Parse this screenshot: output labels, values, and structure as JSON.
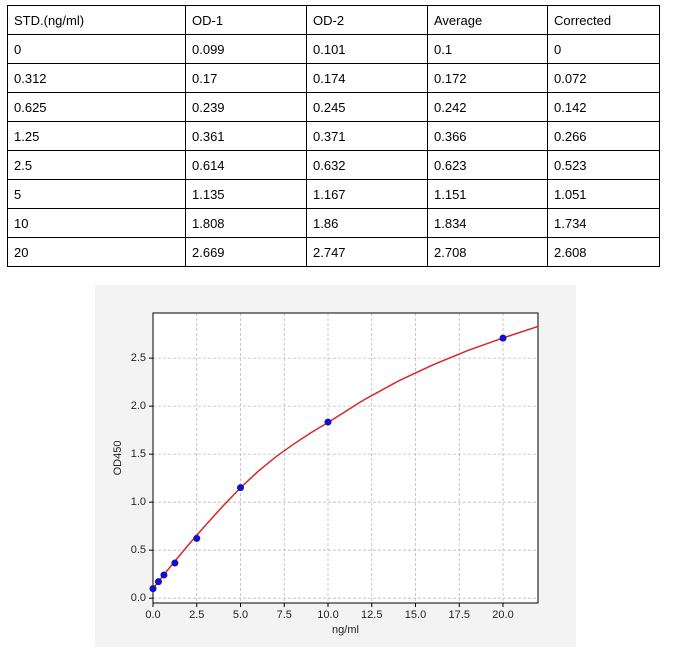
{
  "table": {
    "header": [
      "STD.(ng/ml)",
      "OD-1",
      "OD-2",
      "Average",
      "Corrected"
    ],
    "rows": [
      [
        "0",
        "0.099",
        "0.101",
        "0.1",
        "0"
      ],
      [
        "0.312",
        "0.17",
        "0.174",
        "0.172",
        "0.072"
      ],
      [
        "0.625",
        "0.239",
        "0.245",
        "0.242",
        "0.142"
      ],
      [
        "1.25",
        "0.361",
        "0.371",
        "0.366",
        "0.266"
      ],
      [
        "2.5",
        "0.614",
        "0.632",
        "0.623",
        "0.523"
      ],
      [
        "5",
        "1.135",
        "1.167",
        "1.151",
        "1.051"
      ],
      [
        "10",
        "1.808",
        "1.86",
        "1.834",
        "1.734"
      ],
      [
        "20",
        "2.669",
        "2.747",
        "2.708",
        "2.608"
      ]
    ]
  },
  "chart_data": {
    "type": "scatter",
    "x_label": "ng/ml",
    "y_label": "OD450",
    "points": {
      "color": "#1010c8",
      "x": [
        0,
        0.312,
        0.625,
        1.25,
        2.5,
        5,
        10,
        20
      ],
      "values": [
        0.1,
        0.172,
        0.242,
        0.366,
        0.623,
        1.151,
        1.834,
        2.708
      ]
    },
    "curve": {
      "color": "#d62728",
      "x": [
        0,
        1,
        2,
        3,
        4,
        5,
        6,
        7,
        8,
        9,
        10,
        12,
        14,
        16,
        18,
        20,
        22
      ],
      "values": [
        0.1,
        0.33,
        0.55,
        0.76,
        0.96,
        1.15,
        1.32,
        1.47,
        1.6,
        1.72,
        1.83,
        2.06,
        2.26,
        2.43,
        2.58,
        2.71,
        2.83
      ]
    },
    "xlim": [
      0,
      22
    ],
    "ylim": [
      -0.05,
      2.97
    ],
    "xticks": [
      {
        "value": 0,
        "label": "0.0"
      },
      {
        "value": 2.5,
        "label": "2.5"
      },
      {
        "value": 5,
        "label": "5.0"
      },
      {
        "value": 7.5,
        "label": "7.5"
      },
      {
        "value": 10,
        "label": "10.0"
      },
      {
        "value": 12.5,
        "label": "12.5"
      },
      {
        "value": 15,
        "label": "15.0"
      },
      {
        "value": 17.5,
        "label": "17.5"
      },
      {
        "value": 20,
        "label": "20.0"
      }
    ],
    "yticks": [
      {
        "value": 0,
        "label": "0.0"
      },
      {
        "value": 0.5,
        "label": "0.5"
      },
      {
        "value": 1,
        "label": "1.0"
      },
      {
        "value": 1.5,
        "label": "1.5"
      },
      {
        "value": 2,
        "label": "2.0"
      },
      {
        "value": 2.5,
        "label": "2.5"
      }
    ],
    "grid": true
  }
}
